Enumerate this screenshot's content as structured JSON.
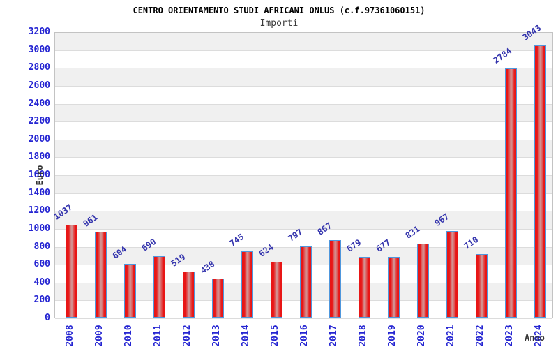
{
  "title": "CENTRO ORIENTAMENTO STUDI AFRICANI ONLUS (c.f.97361060151)",
  "subtitle": "Importi",
  "chart_data": {
    "type": "bar",
    "title": "CENTRO ORIENTAMENTO STUDI AFRICANI ONLUS (c.f.97361060151)",
    "subtitle": "Importi",
    "xlabel": "Anno",
    "ylabel": "Euro",
    "categories": [
      "2008",
      "2009",
      "2010",
      "2011",
      "2012",
      "2013",
      "2014",
      "2015",
      "2016",
      "2017",
      "2018",
      "2019",
      "2020",
      "2021",
      "2022",
      "2023",
      "2024"
    ],
    "values": [
      1037,
      961,
      604,
      690,
      519,
      438,
      745,
      624,
      797,
      867,
      679,
      677,
      831,
      967,
      710,
      2784,
      3043
    ],
    "ylim": [
      0,
      3200
    ],
    "ytick_step": 200,
    "grid": "horizontal-alternating-bands",
    "legend": "none",
    "colors": {
      "bar_edge_red": "#e81616",
      "bar_mid_red": "#d49090",
      "bar_border_blue": "#4f97dd",
      "tick_label_blue": "#2525d2",
      "value_label_navy": "#3434ad",
      "band_gray": "#f0f0f0",
      "band_white": "#ffffff"
    }
  }
}
